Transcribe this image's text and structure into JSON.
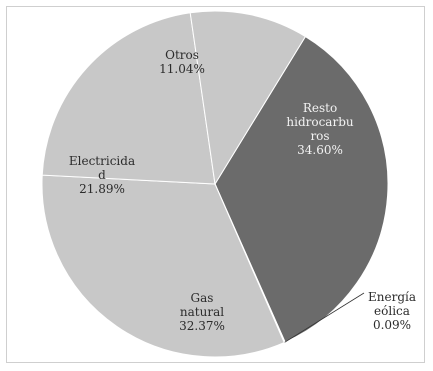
{
  "chart_data": {
    "type": "pie",
    "slices": [
      {
        "label": "Resto hidrocarburos",
        "label_lines": [
          "Resto",
          "hidrocarbu",
          "ros"
        ],
        "value_label": "34.60%",
        "value": 34.6,
        "color": "#6b6b6b"
      },
      {
        "label": "Energía eólica",
        "label_lines": [
          "Energía",
          "eólica"
        ],
        "value_label": "0.09%",
        "value": 0.09,
        "color": "#4a4a4a"
      },
      {
        "label": "Gas natural",
        "label_lines": [
          "Gas",
          "natural"
        ],
        "value_label": "32.37%",
        "value": 32.37,
        "color": "#c8c8c8"
      },
      {
        "label": "Electricidad",
        "label_lines": [
          "Electricida",
          "d"
        ],
        "value_label": "21.89%",
        "value": 21.89,
        "color": "#c8c8c8"
      },
      {
        "label": "Otros",
        "label_lines": [
          "Otros"
        ],
        "value_label": "11.04%",
        "value": 11.04,
        "color": "#c8c8c8"
      }
    ]
  }
}
